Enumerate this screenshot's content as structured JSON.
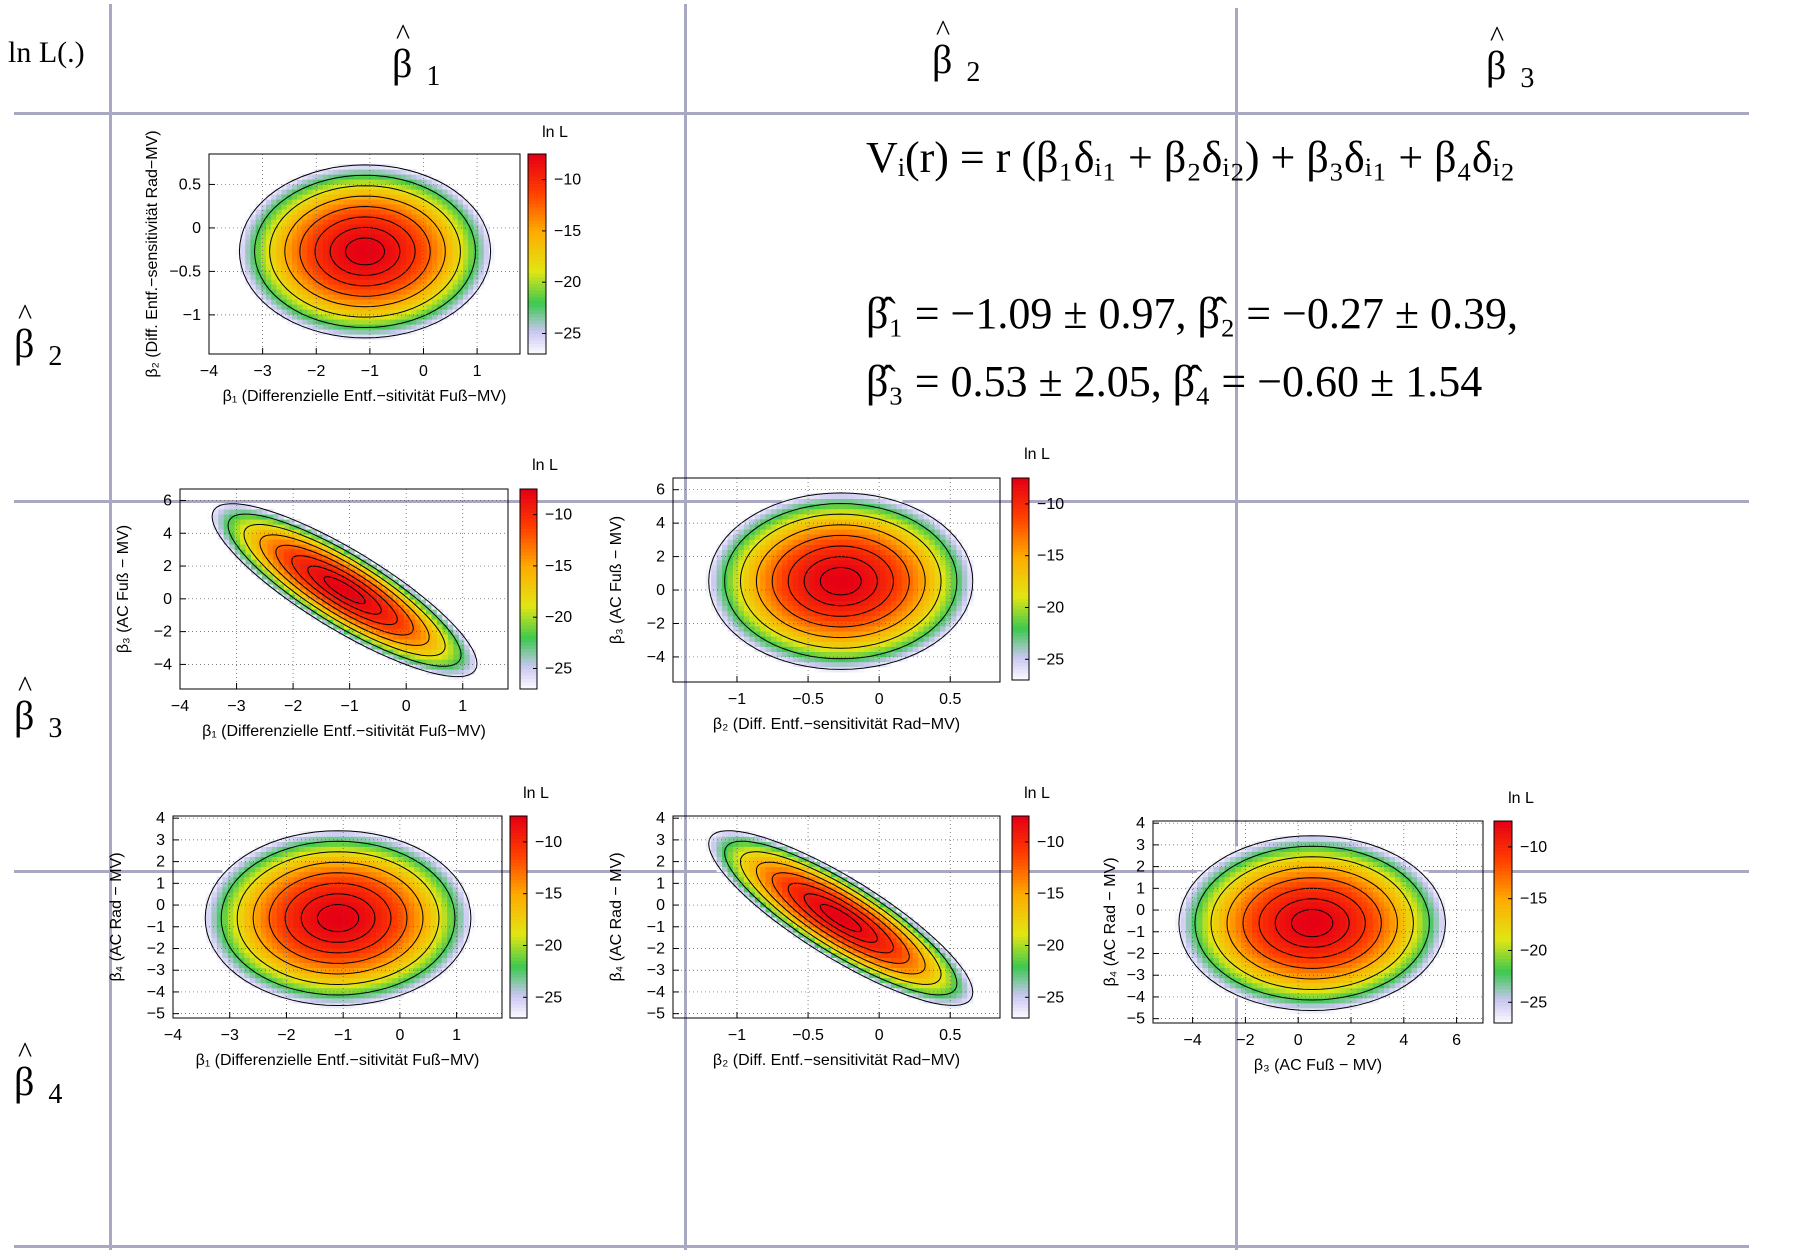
{
  "table": {
    "corner": "ln L(.)",
    "col_headers": [
      {
        "sym": "β",
        "hat": "^",
        "sub": "1"
      },
      {
        "sym": "β",
        "hat": "^",
        "sub": "2"
      },
      {
        "sym": "β",
        "hat": "^",
        "sub": "3"
      }
    ],
    "row_headers": [
      {
        "sym": "β",
        "hat": "^",
        "sub": "2"
      },
      {
        "sym": "β",
        "hat": "^",
        "sub": "3"
      },
      {
        "sym": "β",
        "hat": "^",
        "sub": "4"
      }
    ]
  },
  "equations": {
    "model": "Vᵢ(r) = r (β₁δᵢ₁ + β₂δᵢ₂) + β₃δᵢ₁ + β₄δᵢ₂",
    "estimates_line1": "β̂₁ = −1.09 ± 0.97,  β̂₂ = −0.27 ± 0.39,",
    "estimates_line2": "β̂₃ = 0.53 ± 2.05,  β̂₄ = −0.60 ± 1.54"
  },
  "colors": {
    "table_lines": "#a8a8c2",
    "contour": "#000000"
  },
  "chart_data": [
    {
      "type": "heatmap",
      "id": "b1-b2",
      "xlabel": "β₁ (Differenzielle Entf.−sitivität Fuß−MV)",
      "ylabel": "β₂ (Diff. Entf.−sensitivität Rad−MV)",
      "colorbar_label": "ln L",
      "xlim": [
        -4,
        1.8
      ],
      "ylim": [
        -1.45,
        0.85
      ],
      "xticks": [
        -4,
        -3,
        -2,
        -1,
        0,
        1
      ],
      "yticks": [
        -1,
        -0.5,
        0,
        0.5
      ],
      "colorbar_ticks": [
        -10,
        -15,
        -20,
        -25
      ],
      "colorbar_range": [
        -27,
        -7.5
      ],
      "max_location": {
        "x": -1.09,
        "y": -0.27
      },
      "max_value": -7.5,
      "grid": true
    },
    {
      "type": "heatmap",
      "id": "b1-b3",
      "xlabel": "β₁ (Differenzielle Entf.−sitivität Fuß−MV)",
      "ylabel": "β₃ (AC Fuß − MV)",
      "colorbar_label": "ln L",
      "xlim": [
        -4,
        1.8
      ],
      "ylim": [
        -5.5,
        6.7
      ],
      "xticks": [
        -4,
        -3,
        -2,
        -1,
        0,
        1
      ],
      "yticks": [
        -4,
        -2,
        0,
        2,
        4,
        6
      ],
      "colorbar_ticks": [
        -10,
        -15,
        -20,
        -25
      ],
      "colorbar_range": [
        -27,
        -7.5
      ],
      "max_location": {
        "x": -1.09,
        "y": 0.53
      },
      "max_value": -7.5,
      "grid": true
    },
    {
      "type": "heatmap",
      "id": "b2-b3",
      "xlabel": "β₂ (Diff. Entf.−sensitivität Rad−MV)",
      "ylabel": "β₃ (AC Fuß − MV)",
      "colorbar_label": "ln L",
      "xlim": [
        -1.45,
        0.85
      ],
      "ylim": [
        -5.5,
        6.7
      ],
      "xticks": [
        -1,
        -0.5,
        0,
        0.5
      ],
      "yticks": [
        -4,
        -2,
        0,
        2,
        4,
        6
      ],
      "colorbar_ticks": [
        -10,
        -15,
        -20,
        -25
      ],
      "colorbar_range": [
        -27,
        -7.5
      ],
      "max_location": {
        "x": -0.27,
        "y": 0.53
      },
      "max_value": -7.5,
      "grid": true
    },
    {
      "type": "heatmap",
      "id": "b1-b4",
      "xlabel": "β₁ (Differenzielle Entf.−sitivität Fuß−MV)",
      "ylabel": "β₄ (AC Rad − MV)",
      "colorbar_label": "ln L",
      "xlim": [
        -4,
        1.8
      ],
      "ylim": [
        -5.2,
        4.1
      ],
      "xticks": [
        -4,
        -3,
        -2,
        -1,
        0,
        1
      ],
      "yticks": [
        -5,
        -4,
        -3,
        -2,
        -1,
        0,
        1,
        2,
        3,
        4
      ],
      "colorbar_ticks": [
        -10,
        -15,
        -20,
        -25
      ],
      "colorbar_range": [
        -27,
        -7.5
      ],
      "max_location": {
        "x": -1.09,
        "y": -0.6
      },
      "max_value": -7.5,
      "grid": true
    },
    {
      "type": "heatmap",
      "id": "b2-b4",
      "xlabel": "β₂ (Diff. Entf.−sensitivität Rad−MV)",
      "ylabel": "β₄ (AC Rad − MV)",
      "colorbar_label": "ln L",
      "xlim": [
        -1.45,
        0.85
      ],
      "ylim": [
        -5.2,
        4.1
      ],
      "xticks": [
        -1,
        -0.5,
        0,
        0.5
      ],
      "yticks": [
        -5,
        -4,
        -3,
        -2,
        -1,
        0,
        1,
        2,
        3,
        4
      ],
      "colorbar_ticks": [
        -10,
        -15,
        -20,
        -25
      ],
      "colorbar_range": [
        -27,
        -7.5
      ],
      "max_location": {
        "x": -0.27,
        "y": -0.6
      },
      "max_value": -7.5,
      "grid": true
    },
    {
      "type": "heatmap",
      "id": "b3-b4",
      "xlabel": "β₃ (AC Fuß − MV)",
      "ylabel": "β₄ (AC Rad − MV)",
      "colorbar_label": "ln L",
      "xlim": [
        -5.5,
        7
      ],
      "ylim": [
        -5.2,
        4.1
      ],
      "xticks": [
        -4,
        -2,
        0,
        2,
        4,
        6
      ],
      "yticks": [
        -5,
        -4,
        -3,
        -2,
        -1,
        0,
        1,
        2,
        3,
        4
      ],
      "colorbar_ticks": [
        -10,
        -15,
        -20,
        -25
      ],
      "colorbar_range": [
        -27,
        -7.5
      ],
      "max_location": {
        "x": 0.53,
        "y": -0.6
      },
      "max_value": -7.5,
      "grid": true
    }
  ]
}
